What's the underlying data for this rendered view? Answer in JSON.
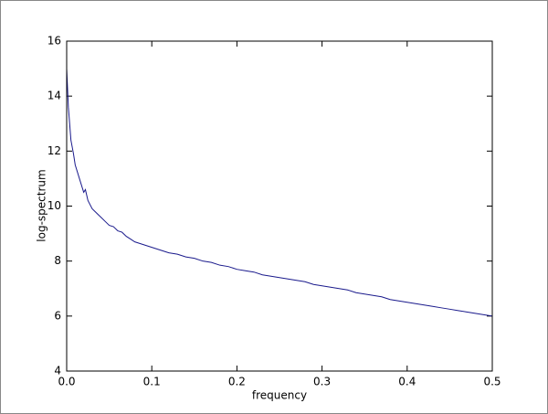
{
  "chart_data": {
    "type": "line",
    "x_label": "frequency",
    "y_label": "log-spectrum",
    "x": [
      0,
      0.002,
      0.005,
      0.008,
      0.01,
      0.015,
      0.02,
      0.022,
      0.025,
      0.03,
      0.035,
      0.04,
      0.045,
      0.05,
      0.055,
      0.06,
      0.065,
      0.07,
      0.075,
      0.08,
      0.085,
      0.09,
      0.1,
      0.11,
      0.12,
      0.13,
      0.14,
      0.15,
      0.16,
      0.17,
      0.18,
      0.19,
      0.2,
      0.21,
      0.22,
      0.23,
      0.24,
      0.25,
      0.26,
      0.27,
      0.28,
      0.29,
      0.3,
      0.31,
      0.32,
      0.33,
      0.34,
      0.35,
      0.36,
      0.37,
      0.38,
      0.39,
      0.4,
      0.41,
      0.42,
      0.43,
      0.44,
      0.45,
      0.46,
      0.47,
      0.48,
      0.49,
      0.5
    ],
    "series": [
      {
        "name": "log-spectrum",
        "color": "#1a1a8c",
        "values": [
          15.0,
          13.6,
          12.4,
          11.9,
          11.5,
          11.0,
          10.5,
          10.6,
          10.2,
          9.9,
          9.75,
          9.6,
          9.45,
          9.3,
          9.25,
          9.1,
          9.05,
          8.9,
          8.8,
          8.7,
          8.65,
          8.6,
          8.5,
          8.4,
          8.3,
          8.25,
          8.15,
          8.1,
          8.0,
          7.95,
          7.85,
          7.8,
          7.7,
          7.65,
          7.6,
          7.5,
          7.45,
          7.4,
          7.35,
          7.3,
          7.25,
          7.15,
          7.1,
          7.05,
          7.0,
          6.95,
          6.85,
          6.8,
          6.75,
          6.7,
          6.6,
          6.55,
          6.5,
          6.45,
          6.4,
          6.35,
          6.3,
          6.25,
          6.2,
          6.15,
          6.1,
          6.05,
          6.0
        ]
      }
    ],
    "xlim": [
      0,
      0.5
    ],
    "xticks": [
      {
        "value": 0,
        "label": "0.0"
      },
      0.1,
      0.2,
      0.3,
      0.4,
      0.5
    ],
    "ylim": [
      4,
      16
    ],
    "yticks": [
      4,
      6,
      8,
      10,
      12,
      14,
      16
    ],
    "grid": false
  }
}
